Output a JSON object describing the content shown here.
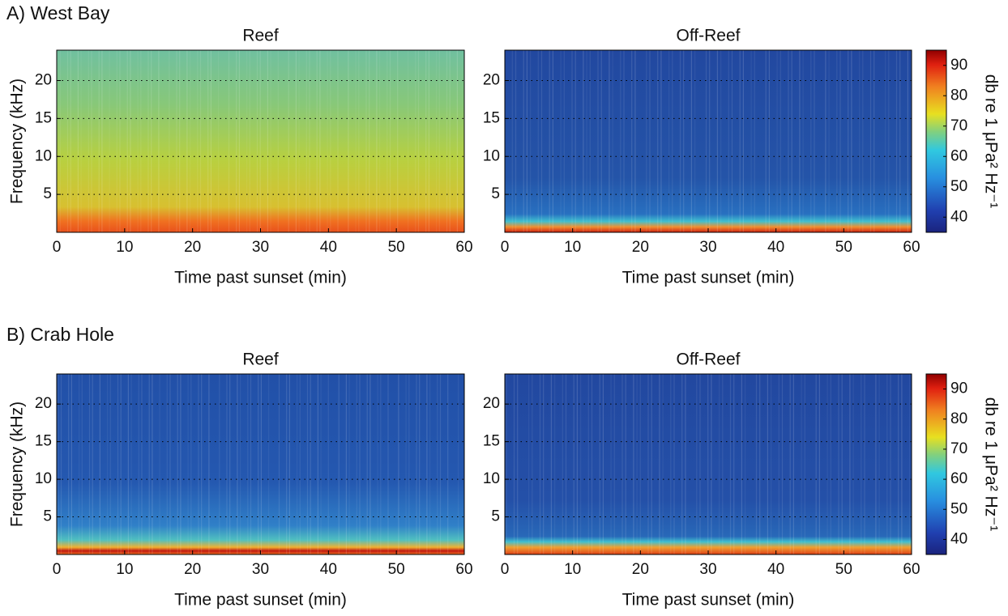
{
  "chart_data": [
    {
      "type": "spectrogram",
      "panel_label": "A) West Bay",
      "title": "Reef",
      "x_label": "Time past sunset (min)",
      "y_label": "Frequency (kHz)",
      "xlim": [
        0,
        60
      ],
      "xticks": [
        0,
        10,
        20,
        30,
        40,
        50,
        60
      ],
      "ylim": [
        0,
        24
      ],
      "yticks": [
        5,
        10,
        15,
        20
      ],
      "grid": true
    },
    {
      "type": "spectrogram",
      "title": "Off-Reef",
      "x_label": "Time past sunset (min)",
      "xlim": [
        0,
        60
      ],
      "xticks": [
        0,
        10,
        20,
        30,
        40,
        50,
        60
      ],
      "ylim": [
        0,
        24
      ],
      "yticks": [
        5,
        10,
        15,
        20
      ],
      "grid": true,
      "colorbar": {
        "label": "db re 1 μPa² Hz⁻¹",
        "lim": [
          35,
          95
        ],
        "ticks": [
          40,
          50,
          60,
          70,
          80,
          90
        ]
      }
    },
    {
      "type": "spectrogram",
      "panel_label": "B) Crab Hole",
      "title": "Reef",
      "x_label": "Time past sunset (min)",
      "y_label": "Frequency (kHz)",
      "xlim": [
        0,
        60
      ],
      "xticks": [
        0,
        10,
        20,
        30,
        40,
        50,
        60
      ],
      "ylim": [
        0,
        24
      ],
      "yticks": [
        5,
        10,
        15,
        20
      ],
      "grid": true
    },
    {
      "type": "spectrogram",
      "title": "Off-Reef",
      "x_label": "Time past sunset (min)",
      "xlim": [
        0,
        60
      ],
      "xticks": [
        0,
        10,
        20,
        30,
        40,
        50,
        60
      ],
      "ylim": [
        0,
        24
      ],
      "yticks": [
        5,
        10,
        15,
        20
      ],
      "grid": true,
      "colorbar": {
        "label": "db re 1 μPa² Hz⁻¹",
        "lim": [
          35,
          95
        ],
        "ticks": [
          40,
          50,
          60,
          70,
          80,
          90
        ]
      }
    }
  ]
}
